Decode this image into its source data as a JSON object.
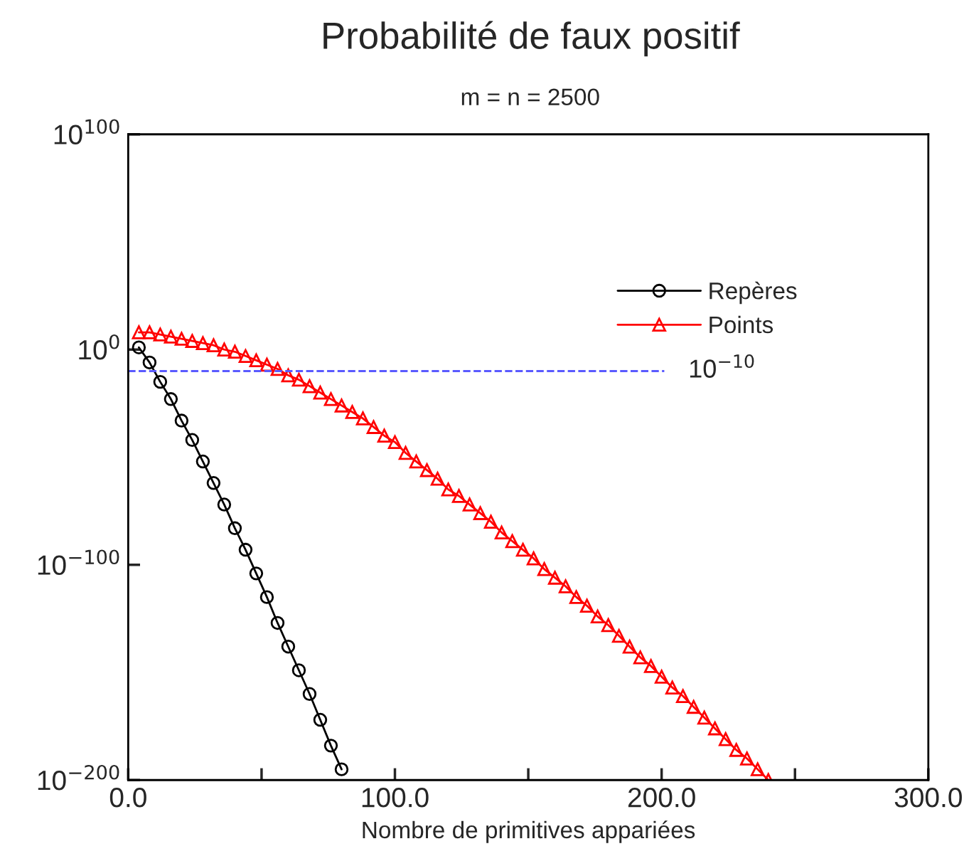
{
  "chart_data": {
    "type": "line",
    "title": "Probabilité de faux positif",
    "subtitle": "m = n = 2500",
    "xlabel": "Nombre de primitives appariées",
    "log": "y",
    "grid": false,
    "legend": "top right",
    "xlim": [
      0,
      300
    ],
    "xticks": [
      {
        "value": 0,
        "label": "0.0"
      },
      {
        "value": 50,
        "label": null
      },
      {
        "value": 100,
        "label": "100.0"
      },
      {
        "value": 150,
        "label": null
      },
      {
        "value": 200,
        "label": "200.0"
      },
      {
        "value": 250,
        "label": null
      },
      {
        "value": 300,
        "label": "300.0"
      }
    ],
    "ylim": [
      1e-200,
      1e+100
    ],
    "yticks": [
      {
        "value": 1e-200,
        "label": "10$^{−200}$"
      },
      {
        "value": 1e-100,
        "label": "10$^{−100}$"
      },
      {
        "value": 1,
        "label": "10$^{0}$"
      },
      {
        "value": 1e+100,
        "label": "10$^{100}$"
      }
    ],
    "ref_lines": [
      {
        "axis": "y",
        "value": 1e-10,
        "label": "10$^{−10}$",
        "color": "#5a5aff",
        "line_style": "dashed"
      }
    ],
    "series": [
      {
        "name": "Repères",
        "color": "#000000",
        "marker": "circle",
        "x": [
          4,
          8,
          12,
          16,
          20,
          24,
          28,
          32,
          36,
          40,
          44,
          48,
          52,
          56,
          60,
          64,
          68,
          72,
          76,
          80
        ],
        "values": [
          10.0,
          1e-06,
          1e-15,
          1e-23,
          1e-33,
          1e-42,
          1e-52,
          1e-62,
          1e-72,
          1e-83,
          1e-93,
          1e-104,
          1e-115,
          1e-127,
          1e-138,
          1e-149,
          1e-160,
          1e-172,
          1e-184,
          1e-195
        ]
      },
      {
        "name": "Points",
        "color": "#ff0000",
        "marker": "triangle",
        "x": [
          4,
          8,
          12,
          16,
          20,
          24,
          28,
          32,
          36,
          40,
          44,
          48,
          52,
          56,
          60,
          64,
          68,
          72,
          76,
          80,
          84,
          88,
          92,
          96,
          100,
          104,
          108,
          112,
          116,
          120,
          124,
          128,
          132,
          136,
          140,
          144,
          148,
          152,
          156,
          160,
          164,
          168,
          172,
          176,
          180,
          184,
          188,
          192,
          196,
          200,
          204,
          208,
          212,
          216,
          220,
          224,
          228,
          232,
          236,
          240
        ],
        "values": [
          100000000.0,
          100000000.0,
          10000000.0,
          1000000.0,
          100000.0,
          10000.0,
          1000.0,
          100.0,
          1,
          0.1,
          0.001,
          1e-05,
          1e-07,
          1e-09,
          1e-12,
          1e-14,
          1e-17,
          1e-20,
          1e-23,
          1e-26,
          1e-29,
          1e-32,
          1e-36,
          1e-40,
          1e-43,
          1e-48,
          1e-52,
          1e-56,
          1e-60,
          1e-65,
          1e-68,
          1e-72,
          1e-76,
          1e-80,
          1e-85,
          1e-89,
          1e-93,
          1e-97,
          1e-102,
          1e-106,
          1e-110,
          1e-115,
          1e-119,
          1e-124,
          1e-128,
          1e-133,
          1e-138,
          1e-143,
          1e-147,
          1e-152,
          1e-157,
          1e-161,
          1e-166,
          1e-171,
          1e-176,
          1e-181,
          1e-186,
          1e-190,
          1e-195,
          1e-200
        ]
      }
    ]
  }
}
